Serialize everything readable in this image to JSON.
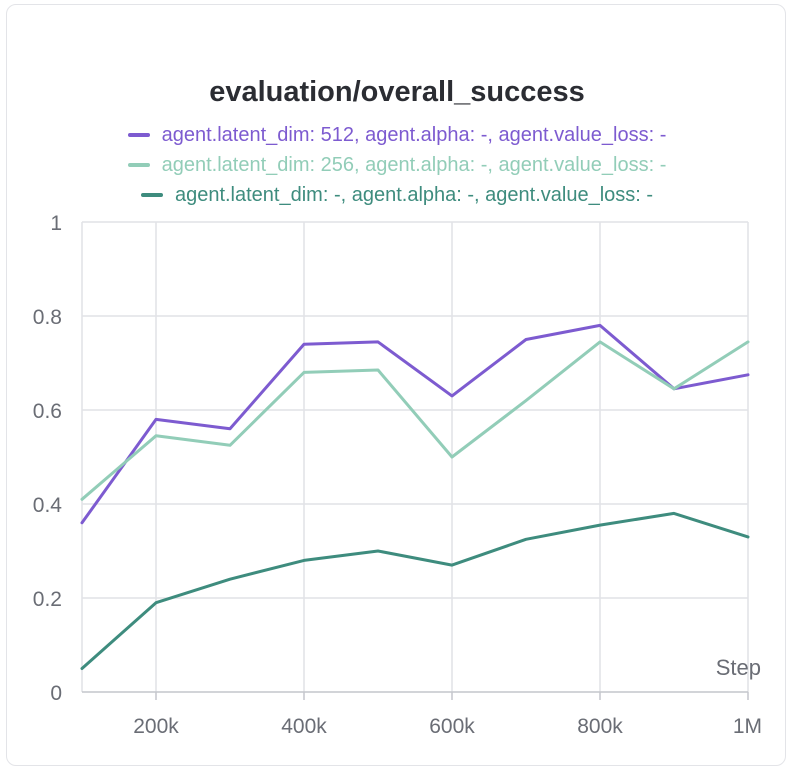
{
  "chart_data": {
    "type": "line",
    "title": "evaluation/overall_success",
    "xlabel": "Step",
    "ylabel": "",
    "xlim": [
      100000,
      1000000
    ],
    "ylim": [
      0,
      1
    ],
    "grid": true,
    "legend_position": "top",
    "x_ticks": [
      {
        "value": 200000,
        "label": "200k"
      },
      {
        "value": 400000,
        "label": "400k"
      },
      {
        "value": 600000,
        "label": "600k"
      },
      {
        "value": 800000,
        "label": "800k"
      },
      {
        "value": 1000000,
        "label": "1M"
      }
    ],
    "y_ticks": [
      {
        "value": 0,
        "label": "0"
      },
      {
        "value": 0.2,
        "label": "0.2"
      },
      {
        "value": 0.4,
        "label": "0.4"
      },
      {
        "value": 0.6,
        "label": "0.6"
      },
      {
        "value": 0.8,
        "label": "0.8"
      },
      {
        "value": 1,
        "label": "1"
      }
    ],
    "x": [
      100000,
      200000,
      300000,
      400000,
      500000,
      600000,
      700000,
      800000,
      900000,
      1000000
    ],
    "series": [
      {
        "name": "agent.latent_dim: 512, agent.alpha: -, agent.value_loss: -",
        "color": "#7d5bd0",
        "values": [
          0.36,
          0.58,
          0.56,
          0.74,
          0.745,
          0.63,
          0.75,
          0.78,
          0.645,
          0.675
        ]
      },
      {
        "name": "agent.latent_dim: 256, agent.alpha: -, agent.value_loss: -",
        "color": "#92cdb8",
        "values": [
          0.41,
          0.545,
          0.525,
          0.68,
          0.685,
          0.5,
          0.62,
          0.745,
          0.645,
          0.745
        ]
      },
      {
        "name": "agent.latent_dim: -, agent.alpha: -, agent.value_loss: -",
        "color": "#3e8c7e",
        "values": [
          0.05,
          0.19,
          0.24,
          0.28,
          0.3,
          0.27,
          0.325,
          0.355,
          0.38,
          0.33
        ]
      }
    ]
  }
}
